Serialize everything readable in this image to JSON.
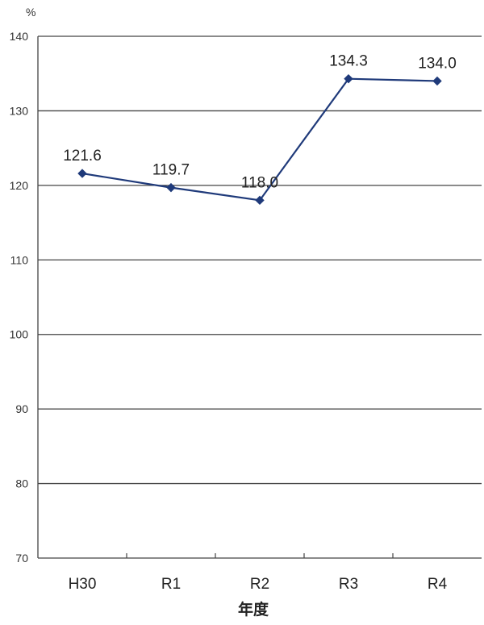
{
  "chart_data": {
    "type": "line",
    "title": "",
    "ylabel_unit": "%",
    "xlabel": "年度",
    "categories": [
      "H30",
      "R1",
      "R2",
      "R3",
      "R4"
    ],
    "series": [
      {
        "values": [
          121.6,
          119.7,
          118.0,
          134.3,
          134.0
        ]
      }
    ],
    "data_labels": [
      "121.6",
      "119.7",
      "118.0",
      "134.3",
      "134.0"
    ],
    "ylim": [
      70,
      140
    ],
    "yticks": [
      70,
      80,
      90,
      100,
      110,
      120,
      130,
      140
    ],
    "grid": true,
    "legend": "none"
  },
  "colors": {
    "line": "#1f3a7a",
    "marker": "#1f3a7a",
    "grid": "#444444",
    "axis": "#444444"
  }
}
